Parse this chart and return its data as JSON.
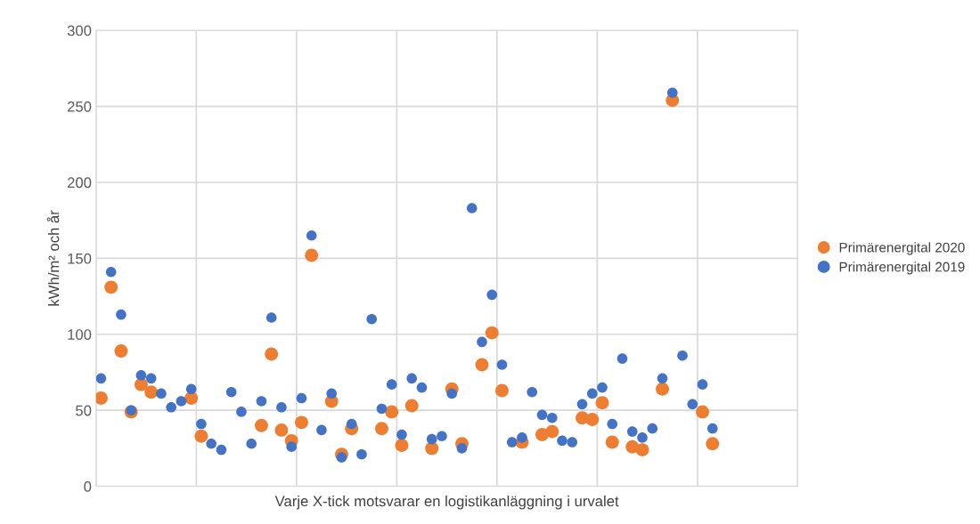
{
  "chart_data": {
    "type": "scatter",
    "xlabel": "Varje X-tick motsvarar en logistikanläggning i urvalet",
    "ylabel": "kWh/m² och år",
    "categories": [
      null,
      null,
      null,
      null,
      null,
      null,
      null,
      null,
      null,
      null,
      null,
      null,
      null,
      null,
      null,
      null,
      null,
      null,
      null,
      null,
      null,
      null,
      null,
      null,
      null,
      null,
      null,
      null,
      null,
      null,
      null,
      null,
      null,
      null,
      null,
      null,
      null,
      null,
      null,
      null,
      null,
      null,
      null,
      null,
      null,
      null,
      null,
      null,
      null,
      null,
      null,
      null,
      null,
      null,
      null,
      null,
      null,
      null,
      null,
      null,
      null,
      null,
      null,
      null,
      null,
      null,
      null,
      null,
      null,
      null
    ],
    "series": [
      {
        "name": "Primärenergital 2020",
        "color": "#ed7d31",
        "values": [
          58,
          131,
          89,
          49,
          67,
          62,
          null,
          null,
          null,
          58,
          33,
          null,
          null,
          null,
          null,
          null,
          40,
          87,
          37,
          30,
          42,
          152,
          null,
          56,
          21,
          38,
          null,
          null,
          38,
          49,
          27,
          53,
          null,
          25,
          null,
          64,
          28,
          null,
          80,
          101,
          63,
          null,
          29,
          null,
          34,
          36,
          null,
          null,
          45,
          44,
          55,
          29,
          null,
          26,
          24,
          null,
          64,
          254,
          null,
          null,
          49,
          28,
          null,
          null,
          null,
          null,
          null,
          null,
          null,
          null
        ]
      },
      {
        "name": "Primärenergital 2019",
        "color": "#4472c4",
        "values": [
          71,
          141,
          113,
          50,
          73,
          71,
          61,
          52,
          56,
          64,
          41,
          28,
          24,
          62,
          49,
          28,
          56,
          111,
          52,
          26,
          58,
          165,
          37,
          61,
          19,
          41,
          21,
          110,
          51,
          67,
          34,
          71,
          65,
          31,
          33,
          61,
          25,
          183,
          95,
          126,
          80,
          29,
          32,
          62,
          47,
          45,
          30,
          29,
          54,
          61,
          65,
          41,
          84,
          36,
          32,
          38,
          71,
          259,
          86,
          54,
          67,
          38,
          null,
          null,
          null,
          null,
          null,
          null,
          null,
          null
        ]
      }
    ],
    "ylim": [
      0,
      300
    ],
    "yticks": [
      0,
      50,
      100,
      150,
      200,
      250,
      300
    ],
    "grid": true,
    "legend": "right",
    "marker": "circle",
    "tick_labels": "y"
  }
}
